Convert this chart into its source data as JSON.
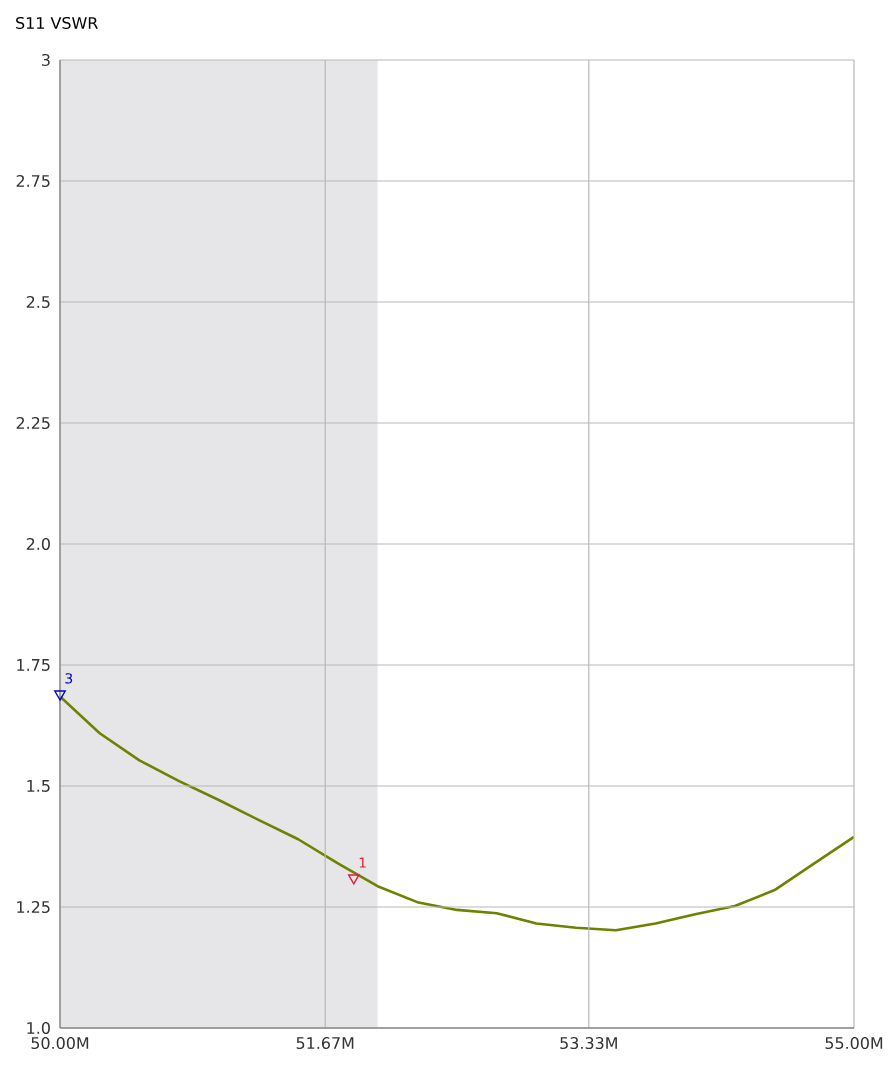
{
  "chart_data": {
    "type": "line",
    "title": "S11 VSWR",
    "xlim": [
      50,
      55
    ],
    "ylim": [
      1,
      3
    ],
    "xticks": [
      {
        "value": 50,
        "label": "50.00M"
      },
      {
        "value": 51.67,
        "label": "51.67M"
      },
      {
        "value": 53.33,
        "label": "53.33M"
      },
      {
        "value": 55,
        "label": "55.00M"
      }
    ],
    "yticks": [
      {
        "value": 1,
        "label": "1.0"
      },
      1.25,
      1.5,
      1.75,
      {
        "value": 2,
        "label": "2.0"
      },
      2.25,
      2.5,
      2.75,
      3
    ],
    "grid": true,
    "line_style": "solid",
    "marker": "none",
    "bands": [
      {
        "axis": "x",
        "from": 50,
        "to": 52,
        "color": "#e6e6e8"
      }
    ],
    "series": [
      {
        "color": "#708000",
        "x": [
          50,
          50.25,
          50.5,
          50.75,
          51,
          51.25,
          51.5,
          51.75,
          52,
          52.25,
          52.5,
          52.75,
          53,
          53.25,
          53.5,
          53.75,
          54,
          54.25,
          54.5,
          54.75,
          55
        ],
        "values": [
          1.685,
          1.609,
          1.553,
          1.51,
          1.471,
          1.43,
          1.39,
          1.34,
          1.293,
          1.26,
          1.244,
          1.237,
          1.216,
          1.207,
          1.202,
          1.216,
          1.235,
          1.252,
          1.285,
          1.34,
          1.395
        ]
      },
      {
        "name": "3",
        "type": "scatter",
        "marker": "triangle",
        "color": "#0000cc",
        "x": [
          50
        ],
        "values": [
          1.69
        ]
      },
      {
        "name": "1",
        "type": "scatter",
        "marker": "triangle",
        "color": "#e0203a",
        "x": [
          51.85
        ],
        "values": [
          1.31
        ]
      }
    ]
  }
}
